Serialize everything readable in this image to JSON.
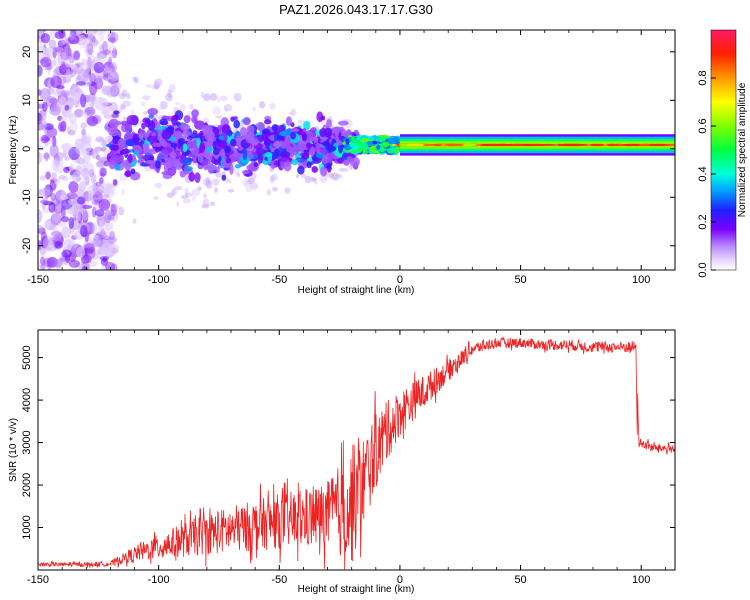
{
  "chart_data": [
    {
      "type": "heatmap",
      "title": "PAZ1.2026.043.17.17.G30",
      "xlabel": "Height of straight line (km)",
      "ylabel": "Frequency (Hz)",
      "xlim": [
        -150,
        114
      ],
      "ylim": [
        -25,
        24.5
      ],
      "xticks": [
        -150,
        -100,
        -50,
        0,
        50,
        100
      ],
      "yticks": [
        -20,
        -10,
        0,
        10,
        20
      ],
      "colorbar": {
        "label": "Normalized spectral amplitude",
        "range": [
          0,
          1
        ],
        "ticks": [
          0.0,
          0.2,
          0.4,
          0.6,
          0.8
        ],
        "tick_labels": [
          "0.0",
          "0.2",
          "0.4",
          "0.6",
          "0.8"
        ]
      },
      "regions": [
        {
          "x": [
            -150,
            -120
          ],
          "freq_spread_hz": 24,
          "amplitude": 0.05
        },
        {
          "x": [
            -120,
            -20
          ],
          "freq_spread_hz": 6,
          "amplitude": 0.15
        },
        {
          "x": [
            -20,
            0
          ],
          "freq_spread_hz": 1.5,
          "amplitude": 0.45
        },
        {
          "x": [
            0,
            30
          ],
          "freq_spread_hz": 1.2,
          "amplitude": 0.6
        },
        {
          "x": [
            30,
            114
          ],
          "freq_spread_hz": 1.0,
          "amplitude": 0.75
        }
      ]
    },
    {
      "type": "line",
      "xlabel": "Height of straight line (km)",
      "ylabel": "SNR (10 * v/v)",
      "xlim": [
        -150,
        114
      ],
      "ylim": [
        0,
        5650
      ],
      "xticks": [
        -150,
        -100,
        -50,
        0,
        50,
        100
      ],
      "yticks": [
        1000,
        2000,
        3000,
        4000,
        5000
      ],
      "color": "#ee2222",
      "envelope": {
        "x": [
          -150,
          -130,
          -120,
          -110,
          -100,
          -90,
          -80,
          -70,
          -60,
          -50,
          -40,
          -30,
          -20,
          -15,
          -10,
          -5,
          0,
          10,
          20,
          30,
          40,
          50,
          60,
          70,
          80,
          90,
          98,
          99,
          105,
          114
        ],
        "mean": [
          130,
          130,
          150,
          380,
          550,
          700,
          850,
          950,
          1050,
          1150,
          1200,
          1300,
          1500,
          2100,
          2800,
          3300,
          3700,
          4200,
          4700,
          5200,
          5350,
          5350,
          5300,
          5300,
          5250,
          5250,
          5250,
          3000,
          2880,
          2850
        ],
        "amp": [
          50,
          50,
          60,
          180,
          300,
          400,
          500,
          550,
          600,
          650,
          700,
          800,
          1400,
          1100,
          900,
          700,
          550,
          400,
          250,
          150,
          120,
          120,
          120,
          130,
          130,
          130,
          150,
          120,
          100,
          100
        ]
      }
    }
  ]
}
